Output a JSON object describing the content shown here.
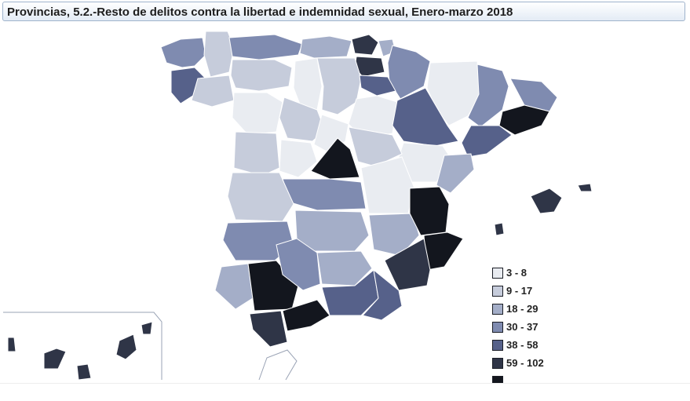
{
  "title": "Provincias, 5.2.-Resto de delitos contra la libertad e indemnidad sexual, Enero-marzo 2018",
  "legend": [
    {
      "label": "3 - 8",
      "color": "#e9ecf1"
    },
    {
      "label": "9 - 17",
      "color": "#c6ccdb"
    },
    {
      "label": "18 - 29",
      "color": "#a4aec8"
    },
    {
      "label": "30 - 37",
      "color": "#7f8bb0"
    },
    {
      "label": "38 - 58",
      "color": "#56618a"
    },
    {
      "label": "59 - 102",
      "color": "#2f3547"
    },
    {
      "label": "",
      "color": "#13161e"
    }
  ],
  "colors": {
    "border": "#ffffff",
    "outline": "#9aa3b5",
    "title_border": "#9fb3cc"
  }
}
